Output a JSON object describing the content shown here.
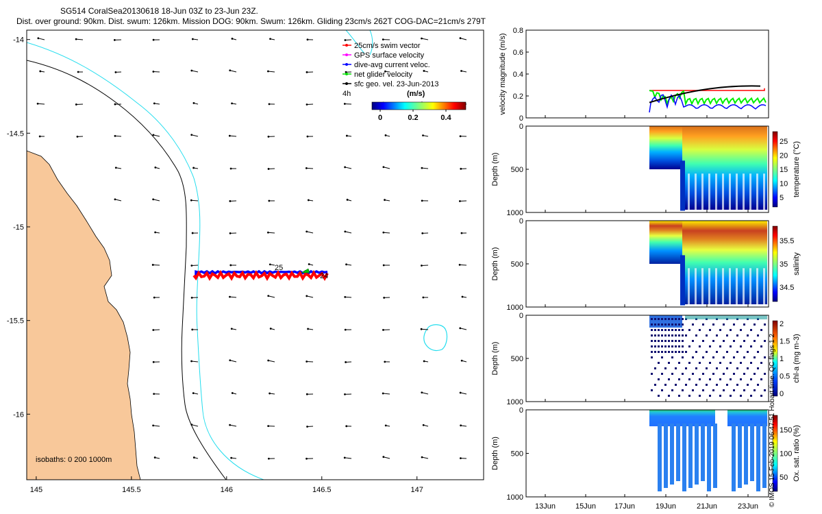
{
  "header": {
    "title": "SG514 CoralSea20130618 18-Jun 03Z to 23-Jun 23Z.",
    "summary": "Dist. over ground: 90km. Dist. swum: 126km. Mission DOG: 90km. Swum: 126km. Gliding 23cm/s 262T COG-DAC=21cm/s 279T"
  },
  "map": {
    "x_ticks": [
      "145",
      "145.5",
      "146",
      "146.5",
      "147"
    ],
    "y_ticks": [
      "-14",
      "-14.5",
      "-15",
      "-15.5",
      "-16"
    ],
    "xlim": [
      144.95,
      147.35
    ],
    "ylim": [
      -16.35,
      -13.95
    ],
    "legend": [
      {
        "label": "25cm/s swim vector",
        "color": "#ff0000"
      },
      {
        "label": "GPS surface velocity",
        "color": "#ff00ff"
      },
      {
        "label": "dive-avg current veloc.",
        "color": "#0000ff"
      },
      {
        "label": "net glider velocity",
        "color": "#00dd00"
      },
      {
        "label": "sfc geo. vel. 23-Jun-2013",
        "color": "#000000"
      }
    ],
    "legend_extra": "4h",
    "colorbar_title": "(m/s)",
    "colorbar_ticks": [
      "0",
      "0.2",
      "0.4"
    ],
    "isobaths_label": "isobaths: 0   200  1000m",
    "track_labels": [
      "25",
      "24"
    ],
    "colors": {
      "land": "#f8c89a",
      "coast200": "#000000",
      "coast1000": "#22ddee",
      "track": "#ff0000",
      "dac": "#0000ff"
    }
  },
  "right_panels": {
    "velocity": {
      "ylabel": "velocity magnitude (m/s)",
      "y_ticks": [
        "0",
        "0.2",
        "0.4",
        "0.6",
        "0.8"
      ]
    },
    "depth_ylabel": "Depth (m)",
    "depth_ticks": [
      "0",
      "500",
      "1000"
    ],
    "temperature": {
      "label": "temperature (°C)",
      "ticks": [
        "5",
        "10",
        "15",
        "20",
        "25"
      ]
    },
    "salinity": {
      "label": "salinity",
      "ticks": [
        "34.5",
        "35",
        "35.5"
      ]
    },
    "chla": {
      "label": "chl-a (mg m-3)",
      "ticks": [
        "0",
        "0.5",
        "1",
        "1.5",
        "2"
      ]
    },
    "oxygen": {
      "label": "Ox. sat. ratio (%)",
      "ticks": [
        "50",
        "100",
        "150"
      ]
    },
    "x_ticks": [
      "13Jun",
      "15Jun",
      "17Jun",
      "19Jun",
      "21Jun",
      "23Jun"
    ],
    "footer_text": "© IMOS 15-Feb-2019 06:47:51 Hobart time. QC flags 1  2"
  }
}
